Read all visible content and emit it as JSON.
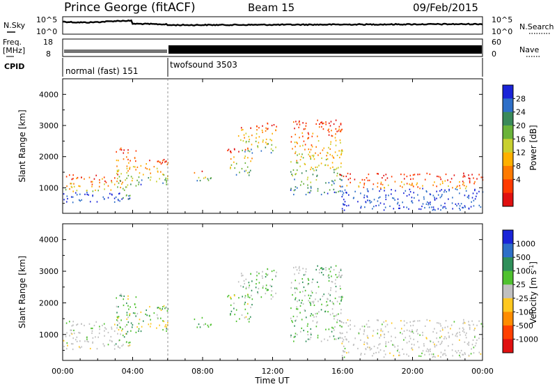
{
  "header": {
    "station": "Prince George (fitACF)",
    "beam": "Beam 15",
    "date": "09/Feb/2015"
  },
  "noise_panel": {
    "left_label": "N.Sky",
    "right_label": "N.Search",
    "left_ticks": [
      "10^5",
      "10^0"
    ],
    "right_ticks": [
      "10^5",
      "10^0"
    ]
  },
  "freq_panel": {
    "left_label_1": "Freq.",
    "left_label_2": "[MHz]",
    "right_label": "Nave",
    "left_ticks": [
      "18",
      "8"
    ],
    "right_ticks": [
      "60",
      "0"
    ]
  },
  "cpid": {
    "label": "CPID",
    "modes": [
      {
        "name": "normal (fast) 151",
        "start_hour": 0,
        "end_hour": 6
      },
      {
        "name": "twofsound 3503",
        "start_hour": 6,
        "end_hour": 24
      }
    ]
  },
  "power_panel": {
    "colorbar_label": "Power [dB]",
    "colorbar_ticks": [
      "28",
      "24",
      "20",
      "16",
      "12",
      "8",
      "4"
    ]
  },
  "velocity_panel": {
    "colorbar_label": "Velocity [m s",
    "colorbar_label_sup": "-1",
    "colorbar_label_end": "]",
    "colorbar_ticks": [
      "1000",
      "500",
      "100",
      "25",
      "-25",
      "-100",
      "-500",
      "-1000"
    ]
  },
  "colors": {
    "power_scale": [
      "#1a24d8",
      "#2e6fc8",
      "#3a8a5a",
      "#6ab33a",
      "#c8d030",
      "#ffb000",
      "#ff7a00",
      "#ff3a00",
      "#e01010"
    ],
    "velocity_scale": [
      "#1a24d8",
      "#2e6fc8",
      "#2f8f5a",
      "#4fc12f",
      "#c0c0c0",
      "#ffc820",
      "#ff8c00",
      "#ff4000",
      "#e01010"
    ]
  },
  "chart_data": {
    "type": "heatmap",
    "xlabel": "Time UT",
    "ylabel": "Slant Range [km]",
    "x_ticks": [
      "00:00",
      "04:00",
      "08:00",
      "12:00",
      "16:00",
      "20:00",
      "00:00"
    ],
    "y_ticks": [
      1000,
      2000,
      3000,
      4000
    ],
    "xlim_hours": [
      0,
      24
    ],
    "ylim_km": [
      180,
      4500
    ],
    "scatter_regions": [
      {
        "t0": 0.0,
        "t1": 3.5,
        "r0": 550,
        "r1": 1450
      },
      {
        "t0": 3.0,
        "t1": 4.2,
        "r0": 650,
        "r1": 2300
      },
      {
        "t0": 4.2,
        "t1": 6.0,
        "r0": 1100,
        "r1": 2000
      },
      {
        "t0": 7.5,
        "t1": 8.5,
        "r0": 1200,
        "r1": 1600
      },
      {
        "t0": 9.4,
        "t1": 10.8,
        "r0": 1400,
        "r1": 2300
      },
      {
        "t0": 10.0,
        "t1": 12.2,
        "r0": 2100,
        "r1": 3100
      },
      {
        "t0": 13.0,
        "t1": 16.0,
        "r0": 800,
        "r1": 3200
      },
      {
        "t0": 15.8,
        "t1": 24.0,
        "r0": 300,
        "r1": 1500
      }
    ]
  }
}
